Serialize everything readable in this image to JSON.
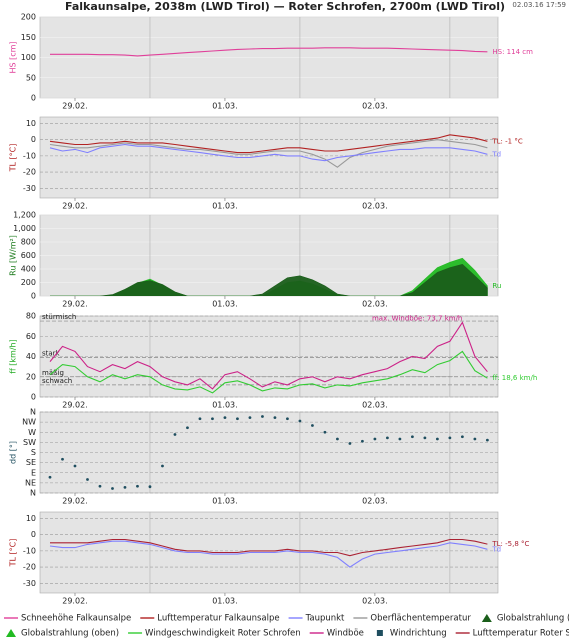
{
  "title": "Falkaunsalpe, 2038m (LWD Tirol) — Roter Schrofen, 2700m (LWD Tirol)",
  "timestamp": "02.03.16 17:59",
  "chart_data": [
    {
      "type": "line",
      "ylabel": "HS [cm]",
      "ylabel_color": "#e0409a",
      "grid_style": "solid",
      "x": [
        -4,
        -2,
        0,
        2,
        4,
        6,
        8,
        10,
        12,
        14,
        16,
        18,
        20,
        22,
        24,
        26,
        28,
        30,
        32,
        34,
        36,
        38,
        40,
        42,
        44,
        46,
        48,
        50,
        52,
        54,
        56,
        58,
        60,
        62,
        64,
        66
      ],
      "xlim": [
        -5.6,
        67.7
      ],
      "xticks": [
        {
          "value": 0,
          "label": "29.02."
        },
        {
          "value": 24,
          "label": "01.03."
        },
        {
          "value": 48,
          "label": "02.03."
        }
      ],
      "xminor": [
        12,
        36,
        60
      ],
      "ylim": [
        0,
        200
      ],
      "yticks": [
        0,
        50,
        100,
        150,
        200
      ],
      "series": [
        {
          "name": "Schneehöhe Falkaunsalpe",
          "color": "#e0409a",
          "end_label": "HS: 114 cm",
          "values": [
            108,
            108,
            108,
            108,
            107,
            107,
            106,
            104,
            106,
            108,
            110,
            112,
            114,
            116,
            118,
            120,
            121,
            122,
            122,
            123,
            123,
            123,
            124,
            124,
            124,
            123,
            123,
            123,
            122,
            121,
            120,
            119,
            118,
            117,
            115,
            114
          ]
        }
      ]
    },
    {
      "type": "line",
      "ylabel": "TL [°C]",
      "ylabel_color": "#b22222",
      "grid_style": "dashed",
      "x": [
        -4,
        -2,
        0,
        2,
        4,
        6,
        8,
        10,
        12,
        14,
        16,
        18,
        20,
        22,
        24,
        26,
        28,
        30,
        32,
        34,
        36,
        38,
        40,
        42,
        44,
        46,
        48,
        50,
        52,
        54,
        56,
        58,
        60,
        62,
        64,
        66
      ],
      "xlim": [
        -5.6,
        67.7
      ],
      "xticks": [
        {
          "value": 0,
          "label": "29.02."
        },
        {
          "value": 24,
          "label": "01.03."
        },
        {
          "value": 48,
          "label": "02.03."
        }
      ],
      "xminor": [
        12,
        36,
        60
      ],
      "ylim": [
        -36,
        14
      ],
      "yticks": [
        -30,
        -20,
        -10,
        0,
        10
      ],
      "series": [
        {
          "name": "Lufttemperatur Falkaunsalpe",
          "color": "#b22222",
          "end_label": "TL: -1 °C",
          "values": [
            -1,
            -2,
            -3,
            -3,
            -2,
            -2,
            -1,
            -2,
            -2,
            -2,
            -3,
            -4,
            -5,
            -6,
            -7,
            -8,
            -8,
            -7,
            -6,
            -5,
            -5,
            -6,
            -7,
            -7,
            -6,
            -5,
            -4,
            -3,
            -2,
            -1,
            0,
            1,
            3,
            2,
            1,
            -1
          ]
        },
        {
          "name": "Taupunkt",
          "color": "#8080ff",
          "end_label": "Td",
          "values": [
            -5,
            -7,
            -6,
            -8,
            -5,
            -4,
            -3,
            -4,
            -4,
            -5,
            -6,
            -7,
            -8,
            -9,
            -10,
            -11,
            -11,
            -10,
            -9,
            -10,
            -10,
            -12,
            -13,
            -11,
            -10,
            -9,
            -8,
            -7,
            -6,
            -6,
            -5,
            -5,
            -5,
            -6,
            -7,
            -9
          ]
        },
        {
          "name": "Oberflächentemperatur",
          "color": "#999999",
          "values": [
            -3,
            -4,
            -5,
            -5,
            -4,
            -3,
            -2,
            -3,
            -3,
            -4,
            -5,
            -6,
            -6,
            -7,
            -8,
            -9,
            -9,
            -8,
            -7,
            -7,
            -7,
            -9,
            -12,
            -17,
            -11,
            -8,
            -6,
            -4,
            -3,
            -2,
            -1,
            0,
            -1,
            -2,
            -3,
            -5
          ]
        }
      ]
    },
    {
      "type": "area",
      "ylabel": "Ru [W/m²]",
      "ylabel_color": "#1a7a1a",
      "grid_style": "solid",
      "x": [
        -4,
        -2,
        0,
        2,
        4,
        6,
        8,
        10,
        12,
        14,
        16,
        18,
        20,
        22,
        24,
        26,
        28,
        30,
        32,
        34,
        36,
        38,
        40,
        42,
        44,
        46,
        48,
        50,
        52,
        54,
        56,
        58,
        60,
        62,
        64,
        66
      ],
      "xlim": [
        -5.6,
        67.7
      ],
      "xticks": [
        {
          "value": 0,
          "label": "29.02."
        },
        {
          "value": 24,
          "label": "01.03."
        },
        {
          "value": 48,
          "label": "02.03."
        }
      ],
      "xminor": [
        12,
        36,
        60
      ],
      "ylim": [
        0,
        1200
      ],
      "yticks": [
        0,
        200,
        400,
        600,
        800,
        {
          "value": 1000,
          "label": "1,000"
        },
        {
          "value": 1200,
          "label": "1,200"
        }
      ],
      "series": [
        {
          "name": "Globalstrahlung (unten)",
          "color": "#1a5e1a",
          "values": [
            0,
            0,
            0,
            0,
            0,
            20,
            100,
            200,
            230,
            170,
            60,
            0,
            0,
            0,
            0,
            0,
            0,
            30,
            150,
            270,
            300,
            240,
            150,
            30,
            0,
            0,
            0,
            0,
            0,
            50,
            200,
            350,
            420,
            470,
            300,
            120
          ]
        },
        {
          "name": "Globalstrahlung (oben)",
          "color": "#22bb22",
          "end_label": "Ru",
          "values": [
            0,
            0,
            0,
            0,
            0,
            10,
            90,
            190,
            250,
            160,
            50,
            0,
            0,
            0,
            0,
            0,
            0,
            0,
            100,
            200,
            220,
            180,
            100,
            20,
            0,
            0,
            0,
            0,
            0,
            80,
            250,
            420,
            500,
            560,
            380,
            150
          ]
        }
      ]
    },
    {
      "type": "line",
      "ylabel": "ff [km/h]",
      "ylabel_color": "#22aa22",
      "grid_style": "dashed",
      "x": [
        -4,
        -2,
        0,
        2,
        4,
        6,
        8,
        10,
        12,
        14,
        16,
        18,
        20,
        22,
        24,
        26,
        28,
        30,
        32,
        34,
        36,
        38,
        40,
        42,
        44,
        46,
        48,
        50,
        52,
        54,
        56,
        58,
        60,
        62,
        64,
        66
      ],
      "xlim": [
        -5.6,
        67.7
      ],
      "xticks": [
        {
          "value": 0,
          "label": "29.02."
        },
        {
          "value": 24,
          "label": "01.03."
        },
        {
          "value": 48,
          "label": "02.03."
        }
      ],
      "xminor": [
        12,
        36,
        60
      ],
      "ylim": [
        0,
        80
      ],
      "yticks": [
        0,
        20,
        40,
        60,
        80
      ],
      "zones": [
        {
          "label": "stürmisch",
          "value": 75
        },
        {
          "label": "stark",
          "value": 39
        },
        {
          "label": "mäßig",
          "value": 20
        },
        {
          "label": "schwach",
          "value": 12
        }
      ],
      "series": [
        {
          "name": "Windgeschwindigkeit Roter Schrofen",
          "color": "#33cc33",
          "end_label": "ff: 18,6 km/h",
          "values": [
            22,
            32,
            30,
            20,
            15,
            22,
            18,
            22,
            20,
            12,
            8,
            7,
            10,
            4,
            14,
            16,
            12,
            6,
            9,
            8,
            12,
            13,
            9,
            12,
            11,
            14,
            16,
            18,
            22,
            27,
            24,
            32,
            36,
            45,
            26,
            18.6
          ]
        },
        {
          "name": "Windböe",
          "color": "#cc2288",
          "max_label": "max. Windböe: 73,7 km/h",
          "values": [
            35,
            50,
            45,
            30,
            25,
            32,
            28,
            35,
            30,
            20,
            15,
            12,
            18,
            8,
            22,
            25,
            18,
            10,
            15,
            12,
            18,
            20,
            15,
            20,
            18,
            22,
            25,
            28,
            35,
            40,
            38,
            50,
            55,
            73.7,
            40,
            25
          ]
        }
      ]
    },
    {
      "type": "scatter",
      "ylabel": "dd [°]",
      "ylabel_color": "#1f4e5f",
      "grid_style": "dashed",
      "x": [
        -4,
        -2,
        0,
        2,
        4,
        6,
        8,
        10,
        12,
        14,
        16,
        18,
        20,
        22,
        24,
        26,
        28,
        30,
        32,
        34,
        36,
        38,
        40,
        42,
        44,
        46,
        48,
        50,
        52,
        54,
        56,
        58,
        60,
        62,
        64,
        66
      ],
      "xlim": [
        -5.6,
        67.7
      ],
      "xticks": [
        {
          "value": 0,
          "label": "29.02."
        },
        {
          "value": 24,
          "label": "01.03."
        },
        {
          "value": 48,
          "label": "02.03."
        }
      ],
      "xminor": [
        12,
        36,
        60
      ],
      "ylim": [
        0,
        360
      ],
      "yticks": [
        {
          "value": 0,
          "label": "N"
        },
        {
          "value": 45,
          "label": "NE"
        },
        {
          "value": 90,
          "label": "E"
        },
        {
          "value": 135,
          "label": "SE"
        },
        {
          "value": 180,
          "label": "S"
        },
        {
          "value": 225,
          "label": "SW"
        },
        {
          "value": 270,
          "label": "W"
        },
        {
          "value": 315,
          "label": "NW"
        },
        {
          "value": 360,
          "label": "N"
        }
      ],
      "series": [
        {
          "name": "Windrichtung",
          "color": "#1f4e5f",
          "values": [
            70,
            150,
            120,
            60,
            30,
            20,
            25,
            30,
            28,
            120,
            260,
            290,
            330,
            330,
            335,
            330,
            335,
            340,
            335,
            330,
            320,
            300,
            270,
            240,
            220,
            230,
            240,
            245,
            240,
            250,
            245,
            240,
            245,
            250,
            240,
            235
          ]
        }
      ]
    },
    {
      "type": "line",
      "ylabel": "TL [°C]",
      "ylabel_color": "#b22222",
      "grid_style": "dashed",
      "x": [
        -4,
        -2,
        0,
        2,
        4,
        6,
        8,
        10,
        12,
        14,
        16,
        18,
        20,
        22,
        24,
        26,
        28,
        30,
        32,
        34,
        36,
        38,
        40,
        42,
        44,
        46,
        48,
        50,
        52,
        54,
        56,
        58,
        60,
        62,
        64,
        66
      ],
      "xlim": [
        -5.6,
        67.7
      ],
      "xticks": [
        {
          "value": 0,
          "label": "29.02."
        },
        {
          "value": 24,
          "label": "01.03."
        },
        {
          "value": 48,
          "label": "02.03."
        }
      ],
      "xminor": [
        12,
        36,
        60
      ],
      "ylim": [
        -36,
        14
      ],
      "yticks": [
        -30,
        -20,
        -10,
        0,
        10
      ],
      "series": [
        {
          "name": "Lufttemperatur Roter Schrofen",
          "color": "#aa2233",
          "end_label": "TL: -5,8 °C",
          "values": [
            -5,
            -5,
            -5,
            -5,
            -4,
            -3,
            -3,
            -4,
            -5,
            -7,
            -9,
            -10,
            -10,
            -11,
            -11,
            -11,
            -10,
            -10,
            -10,
            -9,
            -10,
            -10,
            -11,
            -11,
            -13,
            -11,
            -10,
            -9,
            -8,
            -7,
            -6,
            -5,
            -3,
            -3,
            -4,
            -5.8
          ]
        },
        {
          "name": "Taupunkt",
          "color": "#8080ff",
          "end_label": "Td",
          "values": [
            -7,
            -8,
            -8,
            -6,
            -5,
            -4,
            -4,
            -5,
            -6,
            -8,
            -10,
            -11,
            -11,
            -12,
            -12,
            -12,
            -11,
            -11,
            -11,
            -10,
            -11,
            -11,
            -12,
            -14,
            -20,
            -15,
            -12,
            -11,
            -10,
            -9,
            -8,
            -7,
            -5,
            -6,
            -7,
            -9
          ]
        }
      ]
    }
  ]
}
